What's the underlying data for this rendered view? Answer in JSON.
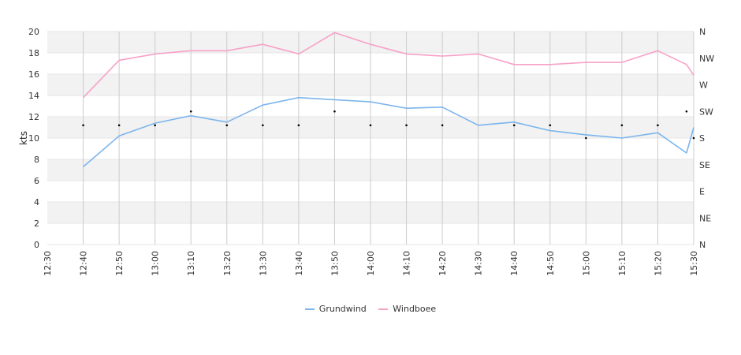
{
  "chart_data": {
    "type": "line",
    "ylabel": "kts",
    "ylim": [
      0,
      20
    ],
    "y_ticks": [
      "0",
      "2",
      "4",
      "6",
      "8",
      "10",
      "12",
      "14",
      "16",
      "18",
      "20"
    ],
    "y2_ticks": [
      "N",
      "NE",
      "E",
      "SE",
      "S",
      "SW",
      "W",
      "NW",
      "N"
    ],
    "x_ticks": [
      "12:30",
      "12:40",
      "12:50",
      "13:00",
      "13:10",
      "13:20",
      "13:30",
      "13:40",
      "13:50",
      "14:00",
      "14:10",
      "14:20",
      "14:30",
      "14:40",
      "14:50",
      "15:00",
      "15:10",
      "15:20",
      "15:30"
    ],
    "grid": true,
    "legend_position": "bottom",
    "series": [
      {
        "name": "Grundwind",
        "color": "#7cb5ec",
        "points": [
          [
            "12:40",
            7.3
          ],
          [
            "12:50",
            10.2
          ],
          [
            "13:00",
            11.4
          ],
          [
            "13:10",
            12.1
          ],
          [
            "13:20",
            11.5
          ],
          [
            "13:30",
            13.1
          ],
          [
            "13:40",
            13.8
          ],
          [
            "13:50",
            13.6
          ],
          [
            "14:00",
            13.4
          ],
          [
            "14:10",
            12.8
          ],
          [
            "14:20",
            12.9
          ],
          [
            "14:30",
            11.2
          ],
          [
            "14:40",
            11.5
          ],
          [
            "14:50",
            10.7
          ],
          [
            "15:00",
            10.3
          ],
          [
            "15:10",
            10.0
          ],
          [
            "15:20",
            10.5
          ],
          [
            "15:28",
            8.6
          ],
          [
            "15:30",
            11.0
          ]
        ]
      },
      {
        "name": "Windboee",
        "color": "#f7a1c8",
        "points": [
          [
            "12:40",
            13.8
          ],
          [
            "12:50",
            17.3
          ],
          [
            "13:00",
            17.9
          ],
          [
            "13:10",
            18.2
          ],
          [
            "13:20",
            18.2
          ],
          [
            "13:30",
            18.8
          ],
          [
            "13:40",
            17.9
          ],
          [
            "13:50",
            19.9
          ],
          [
            "14:00",
            18.8
          ],
          [
            "14:10",
            17.9
          ],
          [
            "14:20",
            17.7
          ],
          [
            "14:30",
            17.9
          ],
          [
            "14:40",
            16.9
          ],
          [
            "14:50",
            16.9
          ],
          [
            "15:00",
            17.1
          ],
          [
            "15:10",
            17.1
          ],
          [
            "15:20",
            18.2
          ],
          [
            "15:28",
            16.9
          ],
          [
            "15:30",
            15.9
          ]
        ]
      }
    ],
    "direction_series": {
      "color": "#000000",
      "points": [
        [
          "12:40",
          11.2
        ],
        [
          "12:50",
          11.2
        ],
        [
          "13:00",
          11.2
        ],
        [
          "13:10",
          12.5
        ],
        [
          "13:20",
          11.2
        ],
        [
          "13:30",
          11.2
        ],
        [
          "13:40",
          11.2
        ],
        [
          "13:50",
          12.5
        ],
        [
          "14:00",
          11.2
        ],
        [
          "14:10",
          11.2
        ],
        [
          "14:20",
          11.2
        ],
        [
          "14:40",
          11.2
        ],
        [
          "14:50",
          11.2
        ],
        [
          "15:00",
          10.0
        ],
        [
          "15:10",
          11.2
        ],
        [
          "15:20",
          11.2
        ],
        [
          "15:28",
          12.5
        ],
        [
          "15:30",
          10.0
        ]
      ]
    }
  }
}
